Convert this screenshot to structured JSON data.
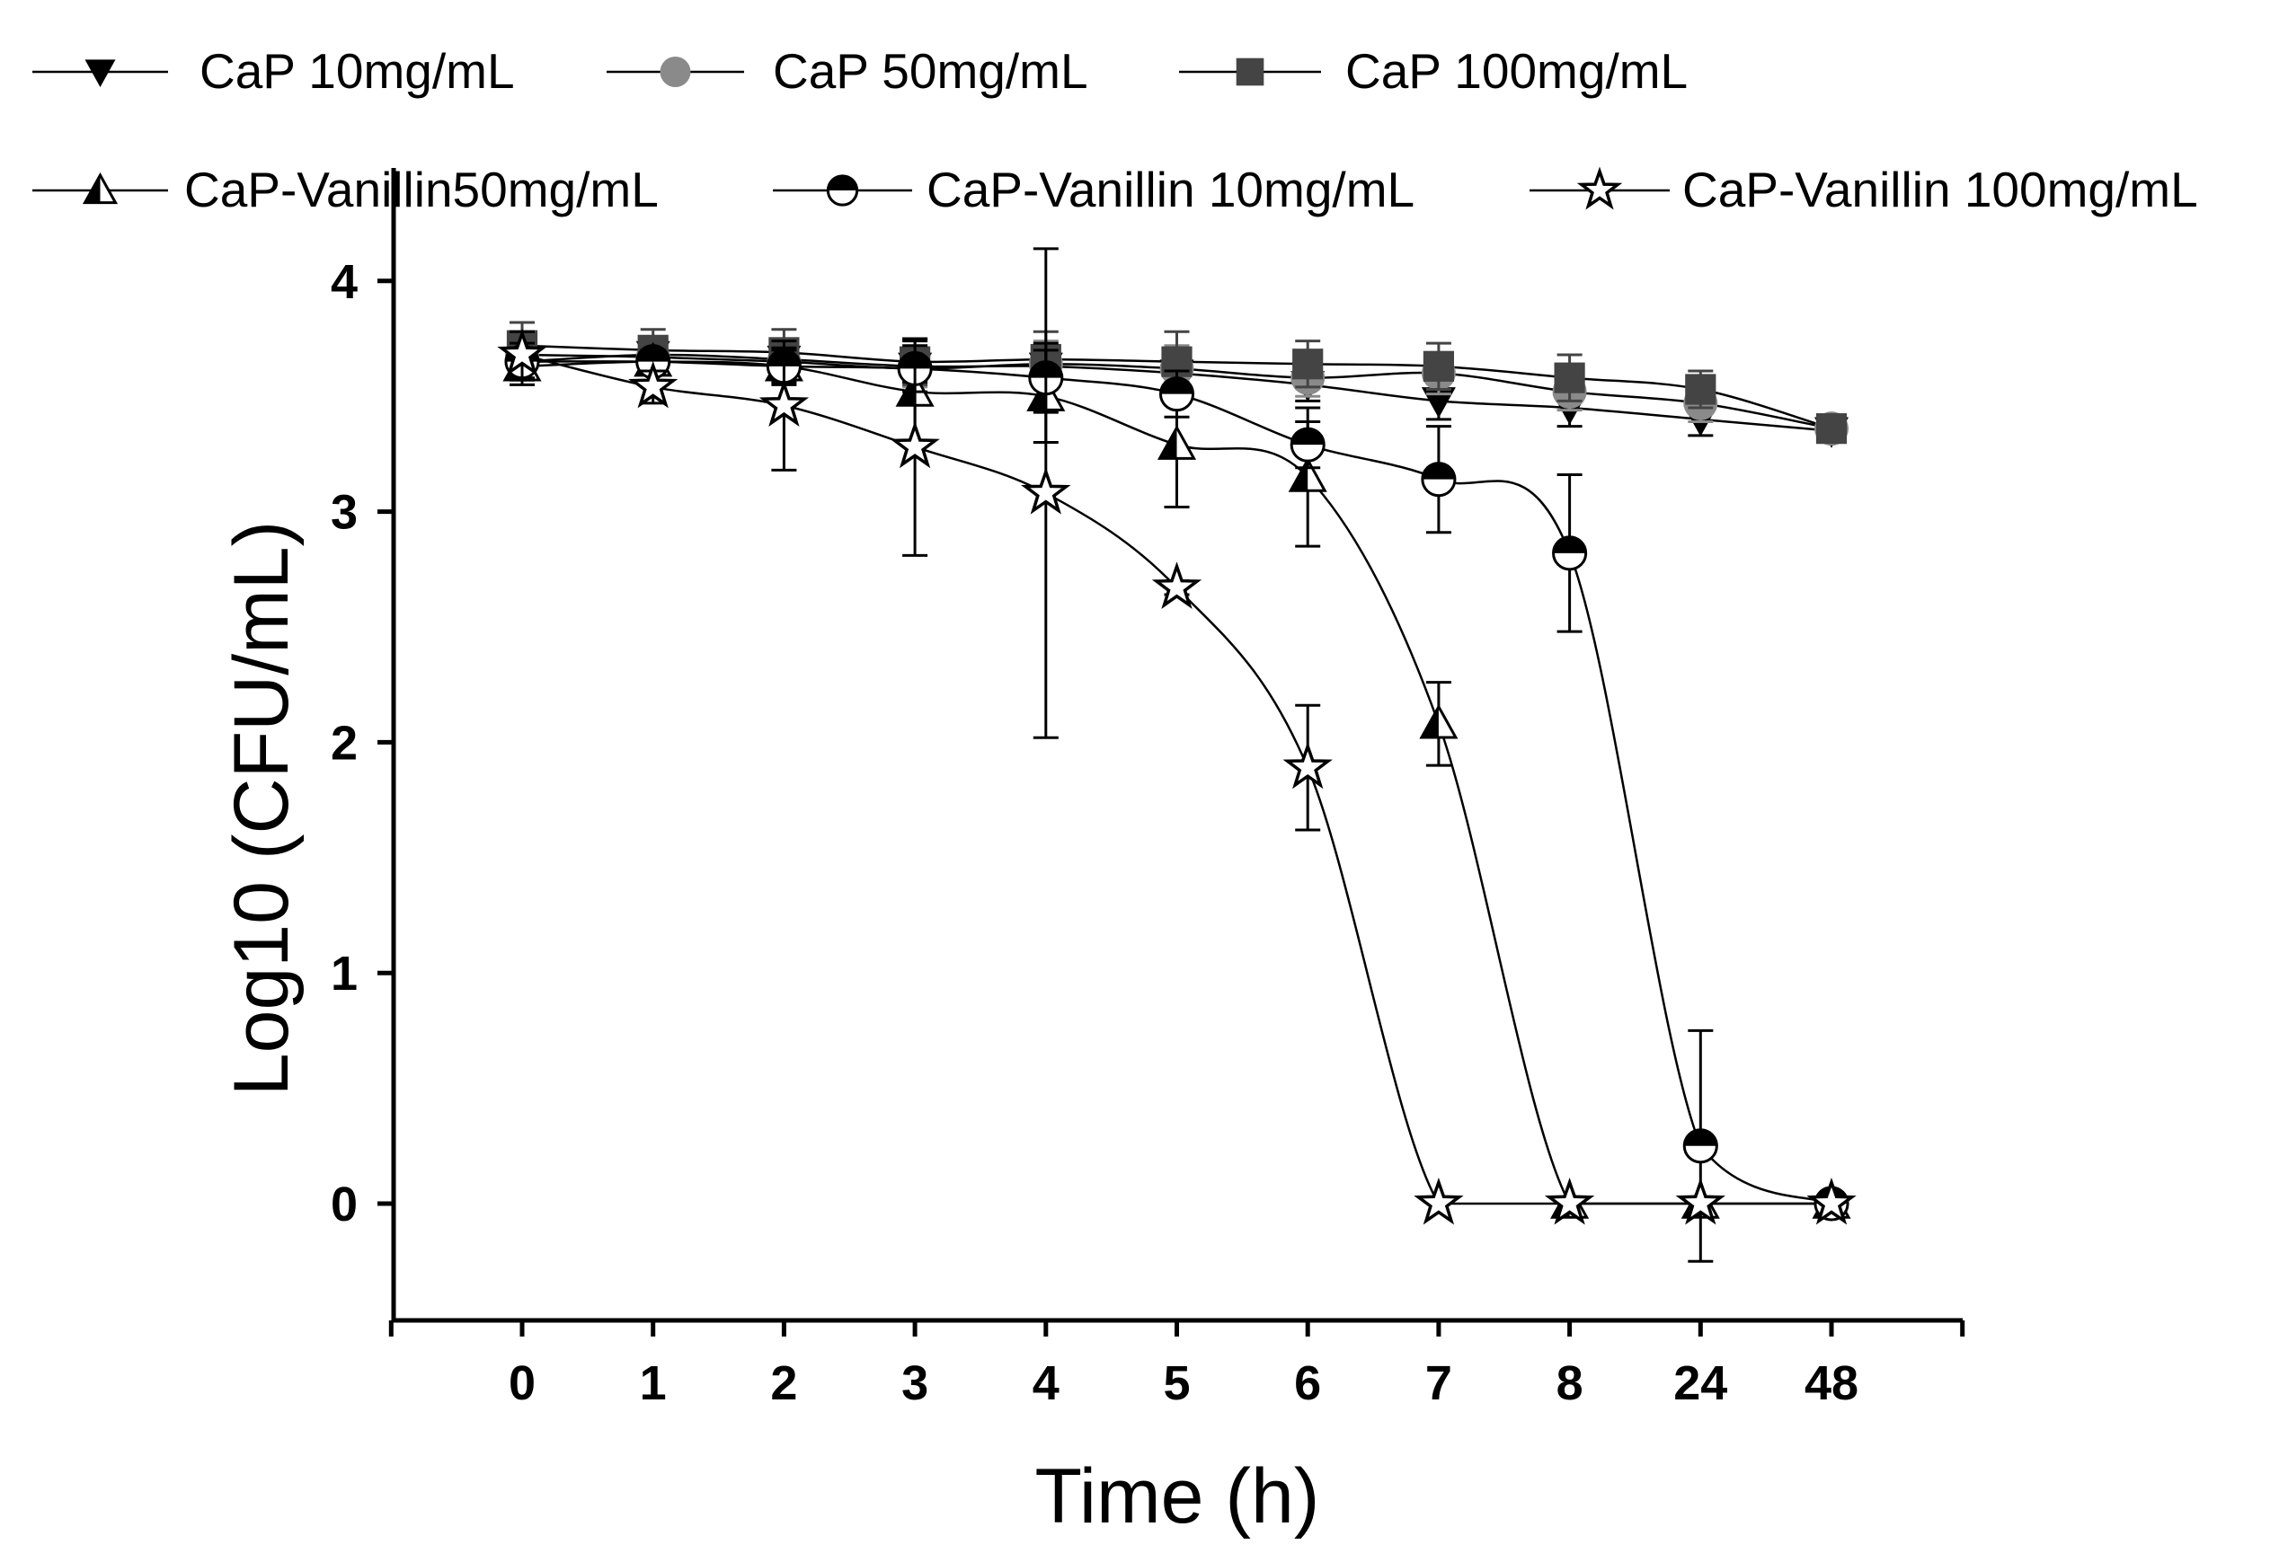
{
  "chart_data": {
    "type": "line",
    "title": "",
    "xlabel": "Time (h)",
    "ylabel": "Log10 (CFU/mL)",
    "categories": [
      "0",
      "1",
      "2",
      "3",
      "4",
      "5",
      "6",
      "7",
      "8",
      "24",
      "48"
    ],
    "yticks": [
      "0",
      "1",
      "2",
      "3",
      "4"
    ],
    "ylim": [
      -0.5,
      4.45
    ],
    "grid": false,
    "legend_placement": "top",
    "series": [
      {
        "name": "CaP 10mg/mL",
        "marker": "down-triangle",
        "color": "#000000",
        "fit": "smooth",
        "values": [
          3.65,
          3.68,
          3.66,
          3.63,
          3.63,
          3.6,
          3.55,
          3.48,
          3.45,
          3.4,
          3.35
        ],
        "errors": [
          0.07,
          0.06,
          0.06,
          0.07,
          0.08,
          0.08,
          0.07,
          0.08,
          0.08,
          0.07,
          0.05
        ]
      },
      {
        "name": "CaP 50mg/mL",
        "marker": "circle",
        "color": "#8a8a8a",
        "fit": "smooth",
        "values": [
          3.68,
          3.67,
          3.65,
          3.62,
          3.64,
          3.62,
          3.58,
          3.6,
          3.52,
          3.47,
          3.36
        ],
        "errors": [
          0.08,
          0.07,
          0.08,
          0.08,
          0.1,
          0.1,
          0.08,
          0.09,
          0.08,
          0.08,
          0.05
        ]
      },
      {
        "name": "CaP 100mg/mL",
        "marker": "square",
        "color": "#444444",
        "fit": "smooth",
        "values": [
          3.72,
          3.7,
          3.69,
          3.65,
          3.66,
          3.65,
          3.64,
          3.63,
          3.58,
          3.53,
          3.36
        ],
        "errors": [
          0.1,
          0.09,
          0.1,
          0.1,
          0.12,
          0.13,
          0.1,
          0.1,
          0.1,
          0.08,
          0.05
        ]
      },
      {
        "name": "CaP-Vanillin50mg/mL",
        "marker": "half-triangle",
        "color": "#000000",
        "fit": "sigmoid",
        "values": [
          3.63,
          3.65,
          3.63,
          3.52,
          3.5,
          3.29,
          3.15,
          2.08,
          0,
          0,
          0
        ],
        "errors": [
          0.08,
          0.05,
          0.08,
          0.22,
          0.2,
          0.27,
          0.3,
          0.18,
          0,
          0,
          0
        ]
      },
      {
        "name": "CaP-Vanillin 10mg/mL",
        "marker": "half-circle",
        "color": "#000000",
        "fit": "sigmoid",
        "values": [
          3.65,
          3.65,
          3.63,
          3.62,
          3.58,
          3.51,
          3.29,
          3.14,
          2.82,
          0.25,
          0
        ],
        "errors": [
          0.08,
          0.05,
          0.07,
          0.1,
          0.15,
          0.1,
          0.1,
          0.23,
          0.34,
          0.5,
          0
        ]
      },
      {
        "name": "CaP-Vanillin 100mg/mL",
        "marker": "star",
        "color": "#000000",
        "fit": "sigmoid",
        "values": [
          3.68,
          3.54,
          3.46,
          3.28,
          3.08,
          2.67,
          1.89,
          0,
          0,
          0,
          0
        ],
        "errors": [
          0.1,
          0.07,
          0.28,
          0.47,
          1.06,
          0.03,
          0.27,
          0,
          0,
          0,
          0
        ]
      }
    ]
  }
}
